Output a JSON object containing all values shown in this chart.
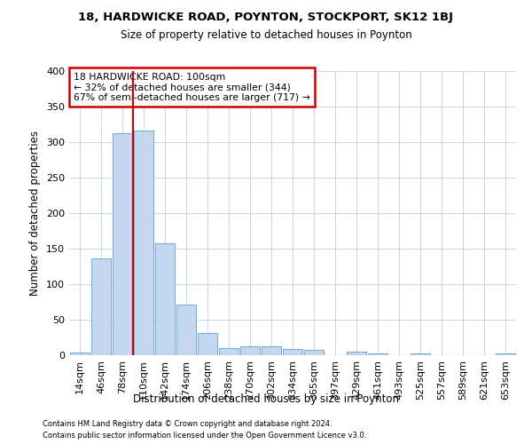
{
  "title1": "18, HARDWICKE ROAD, POYNTON, STOCKPORT, SK12 1BJ",
  "title2": "Size of property relative to detached houses in Poynton",
  "xlabel": "Distribution of detached houses by size in Poynton",
  "ylabel": "Number of detached properties",
  "footer1": "Contains HM Land Registry data © Crown copyright and database right 2024.",
  "footer2": "Contains public sector information licensed under the Open Government Licence v3.0.",
  "bin_labels": [
    "14sqm",
    "46sqm",
    "78sqm",
    "110sqm",
    "142sqm",
    "174sqm",
    "206sqm",
    "238sqm",
    "270sqm",
    "302sqm",
    "334sqm",
    "365sqm",
    "397sqm",
    "429sqm",
    "461sqm",
    "493sqm",
    "525sqm",
    "557sqm",
    "589sqm",
    "621sqm",
    "653sqm"
  ],
  "bar_values": [
    4,
    136,
    312,
    316,
    158,
    71,
    31,
    10,
    13,
    13,
    9,
    8,
    0,
    5,
    3,
    0,
    2,
    0,
    0,
    0,
    2
  ],
  "bar_color": "#c5d8f0",
  "bar_edgecolor": "#7aaed6",
  "grid_color": "#c8d4e8",
  "vline_color": "#cc0000",
  "vline_x": 2.5,
  "annotation_line1": "18 HARDWICKE ROAD: 100sqm",
  "annotation_line2": "← 32% of detached houses are smaller (344)",
  "annotation_line3": "67% of semi-detached houses are larger (717) →",
  "annotation_box_edgecolor": "#cc0000",
  "annotation_box_facecolor": "#ffffff",
  "ylim": [
    0,
    400
  ],
  "yticks": [
    0,
    50,
    100,
    150,
    200,
    250,
    300,
    350,
    400
  ],
  "bg_color": "#ffffff",
  "plot_bg_color": "#ffffff"
}
